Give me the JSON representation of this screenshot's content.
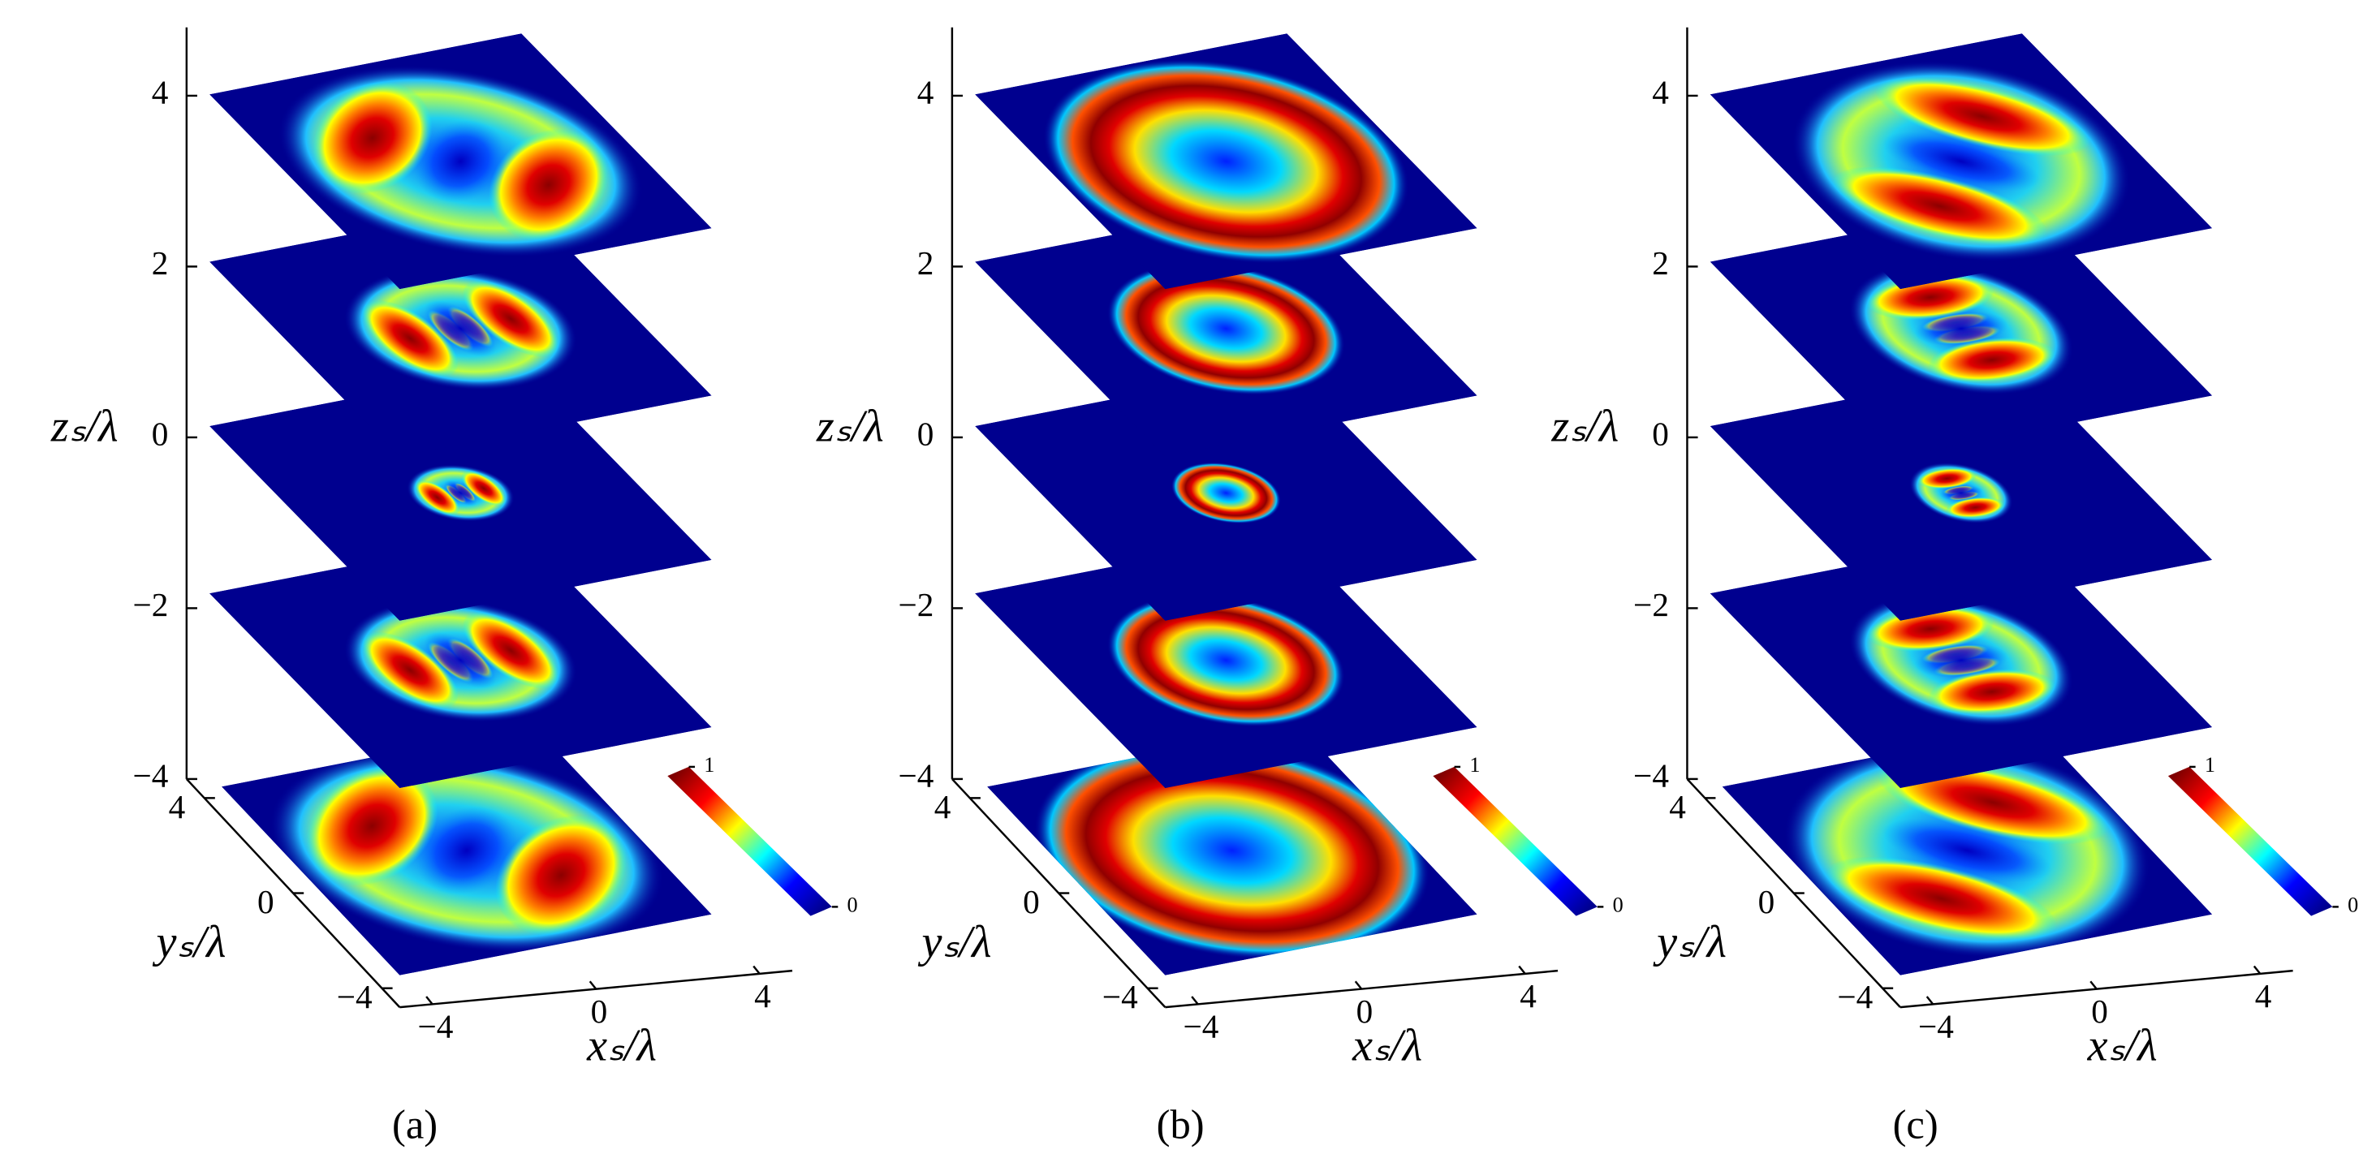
{
  "chart_data": [
    {
      "type": "slices",
      "colormap": "jet",
      "zlabel": "zₛ/λ",
      "ylabel": "yₛ/λ",
      "xlabel": "xₛ/λ",
      "zlim": [
        -4,
        4.8
      ],
      "zticks": [
        4,
        2,
        0,
        {
          "value": -2,
          "label": "−2"
        },
        {
          "value": -4,
          "label": "−4"
        }
      ],
      "ylim": [
        -4.8,
        4.8
      ],
      "yticks": [
        {
          "value": -4,
          "label": "−4"
        },
        0,
        4
      ],
      "xlim": [
        -4.8,
        4.8
      ],
      "xticks": [
        {
          "value": -4,
          "label": "−4"
        },
        0,
        4
      ],
      "clim": [
        0,
        1
      ],
      "cticks": [
        0,
        1
      ],
      "caption": "(a)"
    },
    {
      "type": "slices",
      "colormap": "jet",
      "zlabel": "zₛ/λ",
      "ylabel": "yₛ/λ",
      "xlabel": "xₛ/λ",
      "zlim": [
        -4,
        4.8
      ],
      "zticks": [
        4,
        2,
        0,
        {
          "value": -2,
          "label": "−2"
        },
        {
          "value": -4,
          "label": "−4"
        }
      ],
      "ylim": [
        -4.8,
        4.8
      ],
      "yticks": [
        {
          "value": -4,
          "label": "−4"
        },
        0,
        4
      ],
      "xlim": [
        -4.8,
        4.8
      ],
      "xticks": [
        {
          "value": -4,
          "label": "−4"
        },
        0,
        4
      ],
      "clim": [
        0,
        1
      ],
      "cticks": [
        0,
        1
      ],
      "caption": "(b)"
    },
    {
      "type": "slices",
      "colormap": "jet",
      "zlabel": "zₛ/λ",
      "ylabel": "yₛ/λ",
      "xlabel": "xₛ/λ",
      "zlim": [
        -4,
        4.8
      ],
      "zticks": [
        4,
        2,
        0,
        {
          "value": -2,
          "label": "−2"
        },
        {
          "value": -4,
          "label": "−4"
        }
      ],
      "ylim": [
        -4.8,
        4.8
      ],
      "yticks": [
        {
          "value": -4,
          "label": "−4"
        },
        0,
        4
      ],
      "xlim": [
        -4.8,
        4.8
      ],
      "xticks": [
        {
          "value": -4,
          "label": "−4"
        },
        0,
        4
      ],
      "clim": [
        0,
        1
      ],
      "cticks": [
        0,
        1
      ],
      "caption": "(c)"
    }
  ]
}
